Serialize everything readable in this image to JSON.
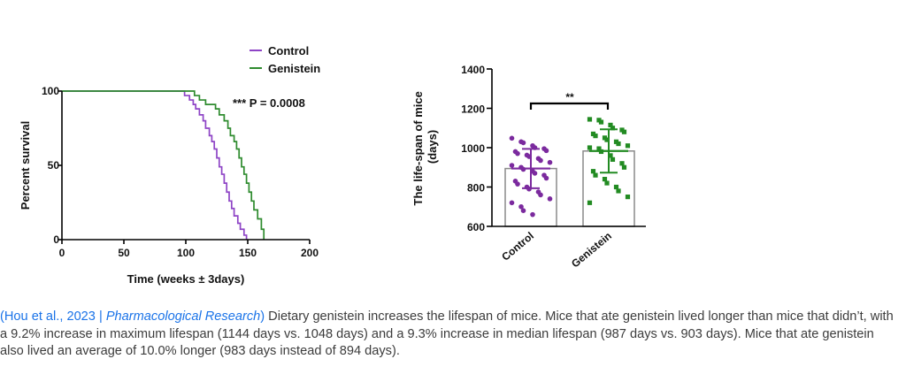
{
  "chart_data": [
    {
      "type": "line",
      "subtype": "kaplan-meier",
      "xlabel": "Time (weeks ± 3days)",
      "ylabel": "Percent survival",
      "xlim": [
        0,
        200
      ],
      "ylim": [
        0,
        100
      ],
      "x_ticks": [
        0,
        50,
        100,
        150,
        200
      ],
      "y_ticks": [
        0,
        50,
        100
      ],
      "annotation": "*** P = 0.0008",
      "legend_placement": "top-right",
      "series": [
        {
          "name": "Control",
          "color": "#8e44c6",
          "points": [
            [
              0,
              100
            ],
            [
              97,
              100
            ],
            [
              99,
              97
            ],
            [
              103,
              94
            ],
            [
              106,
              91
            ],
            [
              108,
              88
            ],
            [
              111,
              84
            ],
            [
              114,
              80
            ],
            [
              116,
              75
            ],
            [
              119,
              70
            ],
            [
              121,
              66
            ],
            [
              123,
              61
            ],
            [
              125,
              55
            ],
            [
              127,
              49
            ],
            [
              129,
              44
            ],
            [
              131,
              38
            ],
            [
              133,
              32
            ],
            [
              135,
              26
            ],
            [
              137,
              21
            ],
            [
              139,
              16
            ],
            [
              142,
              11
            ],
            [
              144,
              7
            ],
            [
              147,
              3
            ],
            [
              149,
              0
            ]
          ]
        },
        {
          "name": "Genistein",
          "color": "#2e8b2e",
          "points": [
            [
              0,
              100
            ],
            [
              104,
              100
            ],
            [
              107,
              97
            ],
            [
              111,
              94
            ],
            [
              116,
              91
            ],
            [
              121,
              91
            ],
            [
              124,
              88
            ],
            [
              127,
              84
            ],
            [
              131,
              80
            ],
            [
              134,
              75
            ],
            [
              136,
              70
            ],
            [
              139,
              66
            ],
            [
              141,
              61
            ],
            [
              143,
              55
            ],
            [
              145,
              49
            ],
            [
              147,
              44
            ],
            [
              149,
              38
            ],
            [
              151,
              32
            ],
            [
              153,
              26
            ],
            [
              155,
              20
            ],
            [
              158,
              14
            ],
            [
              161,
              7
            ],
            [
              163,
              0
            ]
          ]
        }
      ]
    },
    {
      "type": "bar",
      "subtype": "bar-with-scatter",
      "ylabel": "The life-span of mice\n(days)",
      "ylabel_lines": [
        "The life-span of mice",
        "(days)"
      ],
      "ylim": [
        600,
        1400
      ],
      "y_ticks": [
        600,
        800,
        1000,
        1200,
        1400
      ],
      "categories": [
        "Control",
        "Genistein"
      ],
      "values": [
        894,
        983
      ],
      "error": [
        100,
        110
      ],
      "significance": "**",
      "series": [
        {
          "name": "Control",
          "color": "#7b2a9e",
          "points": [
            1048,
            1030,
            1025,
            1010,
            1000,
            995,
            985,
            980,
            970,
            962,
            955,
            945,
            935,
            925,
            910,
            900,
            890,
            880,
            870,
            860,
            845,
            830,
            815,
            800,
            790,
            775,
            760,
            740,
            720,
            700,
            680,
            660
          ]
        },
        {
          "name": "Genistein",
          "color": "#228b22",
          "points": [
            1144,
            1140,
            1130,
            1115,
            1100,
            1090,
            1080,
            1070,
            1060,
            1050,
            1040,
            1030,
            1020,
            1010,
            1000,
            995,
            980,
            960,
            940,
            920,
            900,
            880,
            860,
            840,
            820,
            800,
            780,
            750,
            720
          ]
        }
      ]
    }
  ],
  "caption": {
    "citation_open": "(",
    "citation_author": "Hou et al., 2023 | ",
    "citation_journal": "Pharmacological Research",
    "citation_close": ")",
    "headline": " Dietary genistein increases the lifespan of mice.",
    "body": " Mice that ate genistein lived longer than mice that didn’t, with a 9.2% increase in maximum lifespan (1144 days vs. 1048 days) and a 9.3% increase in median lifespan (987 days vs. 903 days). Mice that ate genistein also lived an average of 10.0% longer (983 days instead of 894 days)."
  }
}
